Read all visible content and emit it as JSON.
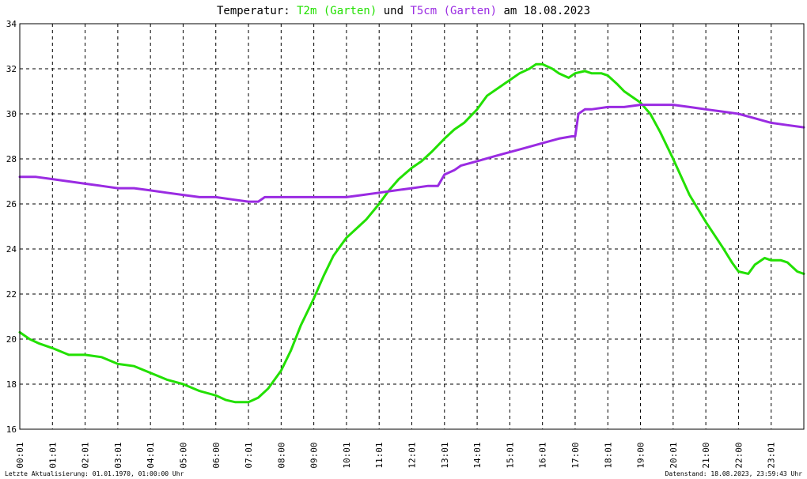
{
  "chart_data": {
    "type": "line",
    "title": {
      "prefix": "Temperatur: ",
      "series1_label": "T2m (Garten)",
      "joiner": " und ",
      "series2_label": "T5cm (Garten)",
      "suffix": " am 18.08.2023"
    },
    "xlabel": "",
    "ylabel": "",
    "ylim": [
      16,
      34
    ],
    "yticks": [
      "16",
      "18",
      "20",
      "22",
      "24",
      "26",
      "28",
      "30",
      "32",
      "34"
    ],
    "xlim": [
      0,
      24
    ],
    "xticks": [
      "00:01",
      "01:01",
      "02:01",
      "03:01",
      "04:01",
      "05:00",
      "06:00",
      "07:01",
      "08:00",
      "09:00",
      "10:01",
      "11:01",
      "12:01",
      "13:01",
      "14:01",
      "15:01",
      "16:01",
      "17:00",
      "18:01",
      "19:00",
      "20:01",
      "21:00",
      "22:00",
      "23:01"
    ],
    "grid": true,
    "series": [
      {
        "name": "T2m (Garten)",
        "color": "#22e000",
        "x": [
          0.0,
          0.3,
          0.6,
          1.0,
          1.5,
          2.0,
          2.5,
          3.0,
          3.5,
          4.0,
          4.5,
          5.0,
          5.5,
          6.0,
          6.3,
          6.6,
          7.0,
          7.3,
          7.6,
          8.0,
          8.3,
          8.6,
          9.0,
          9.3,
          9.6,
          10.0,
          10.3,
          10.6,
          11.0,
          11.3,
          11.6,
          12.0,
          12.3,
          12.6,
          13.0,
          13.3,
          13.6,
          14.0,
          14.3,
          14.6,
          15.0,
          15.3,
          15.6,
          15.8,
          16.0,
          16.3,
          16.5,
          16.8,
          17.0,
          17.3,
          17.5,
          17.8,
          18.0,
          18.3,
          18.5,
          18.8,
          19.0,
          19.3,
          19.6,
          20.0,
          20.5,
          21.0,
          21.5,
          21.8,
          22.0,
          22.3,
          22.5,
          22.8,
          23.0,
          23.3,
          23.5,
          23.8,
          24.0
        ],
        "values": [
          20.3,
          20.0,
          19.8,
          19.6,
          19.3,
          19.3,
          19.2,
          18.9,
          18.8,
          18.5,
          18.2,
          18.0,
          17.7,
          17.5,
          17.3,
          17.2,
          17.2,
          17.4,
          17.8,
          18.6,
          19.5,
          20.6,
          21.8,
          22.8,
          23.7,
          24.5,
          24.9,
          25.3,
          26.0,
          26.6,
          27.1,
          27.6,
          27.9,
          28.3,
          28.9,
          29.3,
          29.6,
          30.2,
          30.8,
          31.1,
          31.5,
          31.8,
          32.0,
          32.2,
          32.2,
          32.0,
          31.8,
          31.6,
          31.8,
          31.9,
          31.8,
          31.8,
          31.7,
          31.3,
          31.0,
          30.7,
          30.5,
          30.0,
          29.2,
          28.0,
          26.4,
          25.2,
          24.1,
          23.4,
          23.0,
          22.9,
          23.3,
          23.6,
          23.5,
          23.5,
          23.4,
          23.0,
          22.9
        ]
      },
      {
        "name": "T5cm (Garten)",
        "color": "#9a2be2",
        "x": [
          0.0,
          0.5,
          1.0,
          1.5,
          2.0,
          2.5,
          3.0,
          3.5,
          4.0,
          4.5,
          5.0,
          5.5,
          6.0,
          6.5,
          7.0,
          7.3,
          7.5,
          8.0,
          8.5,
          9.0,
          9.5,
          10.0,
          10.5,
          11.0,
          11.5,
          12.0,
          12.5,
          12.8,
          13.0,
          13.3,
          13.5,
          14.0,
          14.5,
          15.0,
          15.5,
          16.0,
          16.5,
          16.9,
          17.0,
          17.1,
          17.3,
          17.5,
          18.0,
          18.5,
          19.0,
          19.5,
          20.0,
          20.5,
          21.0,
          21.5,
          22.0,
          22.5,
          23.0,
          23.5,
          24.0
        ],
        "values": [
          27.2,
          27.2,
          27.1,
          27.0,
          26.9,
          26.8,
          26.7,
          26.7,
          26.6,
          26.5,
          26.4,
          26.3,
          26.3,
          26.2,
          26.1,
          26.1,
          26.3,
          26.3,
          26.3,
          26.3,
          26.3,
          26.3,
          26.4,
          26.5,
          26.6,
          26.7,
          26.8,
          26.8,
          27.3,
          27.5,
          27.7,
          27.9,
          28.1,
          28.3,
          28.5,
          28.7,
          28.9,
          29.0,
          29.0,
          30.0,
          30.2,
          30.2,
          30.3,
          30.3,
          30.4,
          30.4,
          30.4,
          30.3,
          30.2,
          30.1,
          30.0,
          29.8,
          29.6,
          29.5,
          29.4
        ]
      }
    ]
  },
  "footer": {
    "left": "Letzte Aktualisierung: 01.01.1970, 01:00:00 Uhr",
    "right": "Datenstand: 18.08.2023, 23:59:43 Uhr"
  }
}
